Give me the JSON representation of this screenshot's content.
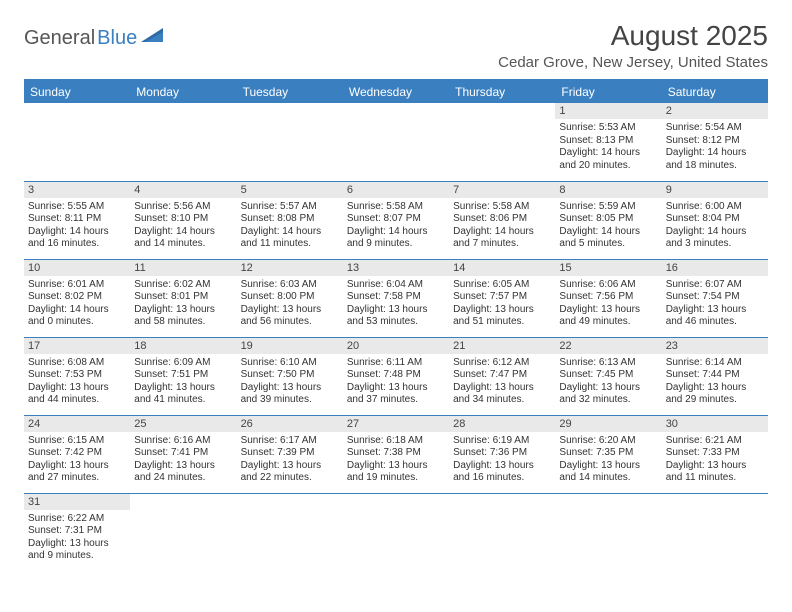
{
  "logo": {
    "part1": "General",
    "part2": "Blue"
  },
  "header": {
    "month_year": "August 2025",
    "location": "Cedar Grove, New Jersey, United States"
  },
  "colors": {
    "accent": "#3a7fbf",
    "dayRow": "#e9e9e9",
    "text": "#333333",
    "page": "#ffffff"
  },
  "weekdays": [
    "Sunday",
    "Monday",
    "Tuesday",
    "Wednesday",
    "Thursday",
    "Friday",
    "Saturday"
  ],
  "weeks": [
    [
      null,
      null,
      null,
      null,
      null,
      {
        "n": "1",
        "l1": "Sunrise: 5:53 AM",
        "l2": "Sunset: 8:13 PM",
        "l3": "Daylight: 14 hours",
        "l4": "and 20 minutes."
      },
      {
        "n": "2",
        "l1": "Sunrise: 5:54 AM",
        "l2": "Sunset: 8:12 PM",
        "l3": "Daylight: 14 hours",
        "l4": "and 18 minutes."
      }
    ],
    [
      {
        "n": "3",
        "l1": "Sunrise: 5:55 AM",
        "l2": "Sunset: 8:11 PM",
        "l3": "Daylight: 14 hours",
        "l4": "and 16 minutes."
      },
      {
        "n": "4",
        "l1": "Sunrise: 5:56 AM",
        "l2": "Sunset: 8:10 PM",
        "l3": "Daylight: 14 hours",
        "l4": "and 14 minutes."
      },
      {
        "n": "5",
        "l1": "Sunrise: 5:57 AM",
        "l2": "Sunset: 8:08 PM",
        "l3": "Daylight: 14 hours",
        "l4": "and 11 minutes."
      },
      {
        "n": "6",
        "l1": "Sunrise: 5:58 AM",
        "l2": "Sunset: 8:07 PM",
        "l3": "Daylight: 14 hours",
        "l4": "and 9 minutes."
      },
      {
        "n": "7",
        "l1": "Sunrise: 5:58 AM",
        "l2": "Sunset: 8:06 PM",
        "l3": "Daylight: 14 hours",
        "l4": "and 7 minutes."
      },
      {
        "n": "8",
        "l1": "Sunrise: 5:59 AM",
        "l2": "Sunset: 8:05 PM",
        "l3": "Daylight: 14 hours",
        "l4": "and 5 minutes."
      },
      {
        "n": "9",
        "l1": "Sunrise: 6:00 AM",
        "l2": "Sunset: 8:04 PM",
        "l3": "Daylight: 14 hours",
        "l4": "and 3 minutes."
      }
    ],
    [
      {
        "n": "10",
        "l1": "Sunrise: 6:01 AM",
        "l2": "Sunset: 8:02 PM",
        "l3": "Daylight: 14 hours",
        "l4": "and 0 minutes."
      },
      {
        "n": "11",
        "l1": "Sunrise: 6:02 AM",
        "l2": "Sunset: 8:01 PM",
        "l3": "Daylight: 13 hours",
        "l4": "and 58 minutes."
      },
      {
        "n": "12",
        "l1": "Sunrise: 6:03 AM",
        "l2": "Sunset: 8:00 PM",
        "l3": "Daylight: 13 hours",
        "l4": "and 56 minutes."
      },
      {
        "n": "13",
        "l1": "Sunrise: 6:04 AM",
        "l2": "Sunset: 7:58 PM",
        "l3": "Daylight: 13 hours",
        "l4": "and 53 minutes."
      },
      {
        "n": "14",
        "l1": "Sunrise: 6:05 AM",
        "l2": "Sunset: 7:57 PM",
        "l3": "Daylight: 13 hours",
        "l4": "and 51 minutes."
      },
      {
        "n": "15",
        "l1": "Sunrise: 6:06 AM",
        "l2": "Sunset: 7:56 PM",
        "l3": "Daylight: 13 hours",
        "l4": "and 49 minutes."
      },
      {
        "n": "16",
        "l1": "Sunrise: 6:07 AM",
        "l2": "Sunset: 7:54 PM",
        "l3": "Daylight: 13 hours",
        "l4": "and 46 minutes."
      }
    ],
    [
      {
        "n": "17",
        "l1": "Sunrise: 6:08 AM",
        "l2": "Sunset: 7:53 PM",
        "l3": "Daylight: 13 hours",
        "l4": "and 44 minutes."
      },
      {
        "n": "18",
        "l1": "Sunrise: 6:09 AM",
        "l2": "Sunset: 7:51 PM",
        "l3": "Daylight: 13 hours",
        "l4": "and 41 minutes."
      },
      {
        "n": "19",
        "l1": "Sunrise: 6:10 AM",
        "l2": "Sunset: 7:50 PM",
        "l3": "Daylight: 13 hours",
        "l4": "and 39 minutes."
      },
      {
        "n": "20",
        "l1": "Sunrise: 6:11 AM",
        "l2": "Sunset: 7:48 PM",
        "l3": "Daylight: 13 hours",
        "l4": "and 37 minutes."
      },
      {
        "n": "21",
        "l1": "Sunrise: 6:12 AM",
        "l2": "Sunset: 7:47 PM",
        "l3": "Daylight: 13 hours",
        "l4": "and 34 minutes."
      },
      {
        "n": "22",
        "l1": "Sunrise: 6:13 AM",
        "l2": "Sunset: 7:45 PM",
        "l3": "Daylight: 13 hours",
        "l4": "and 32 minutes."
      },
      {
        "n": "23",
        "l1": "Sunrise: 6:14 AM",
        "l2": "Sunset: 7:44 PM",
        "l3": "Daylight: 13 hours",
        "l4": "and 29 minutes."
      }
    ],
    [
      {
        "n": "24",
        "l1": "Sunrise: 6:15 AM",
        "l2": "Sunset: 7:42 PM",
        "l3": "Daylight: 13 hours",
        "l4": "and 27 minutes."
      },
      {
        "n": "25",
        "l1": "Sunrise: 6:16 AM",
        "l2": "Sunset: 7:41 PM",
        "l3": "Daylight: 13 hours",
        "l4": "and 24 minutes."
      },
      {
        "n": "26",
        "l1": "Sunrise: 6:17 AM",
        "l2": "Sunset: 7:39 PM",
        "l3": "Daylight: 13 hours",
        "l4": "and 22 minutes."
      },
      {
        "n": "27",
        "l1": "Sunrise: 6:18 AM",
        "l2": "Sunset: 7:38 PM",
        "l3": "Daylight: 13 hours",
        "l4": "and 19 minutes."
      },
      {
        "n": "28",
        "l1": "Sunrise: 6:19 AM",
        "l2": "Sunset: 7:36 PM",
        "l3": "Daylight: 13 hours",
        "l4": "and 16 minutes."
      },
      {
        "n": "29",
        "l1": "Sunrise: 6:20 AM",
        "l2": "Sunset: 7:35 PM",
        "l3": "Daylight: 13 hours",
        "l4": "and 14 minutes."
      },
      {
        "n": "30",
        "l1": "Sunrise: 6:21 AM",
        "l2": "Sunset: 7:33 PM",
        "l3": "Daylight: 13 hours",
        "l4": "and 11 minutes."
      }
    ],
    [
      {
        "n": "31",
        "l1": "Sunrise: 6:22 AM",
        "l2": "Sunset: 7:31 PM",
        "l3": "Daylight: 13 hours",
        "l4": "and 9 minutes."
      },
      null,
      null,
      null,
      null,
      null,
      null
    ]
  ]
}
